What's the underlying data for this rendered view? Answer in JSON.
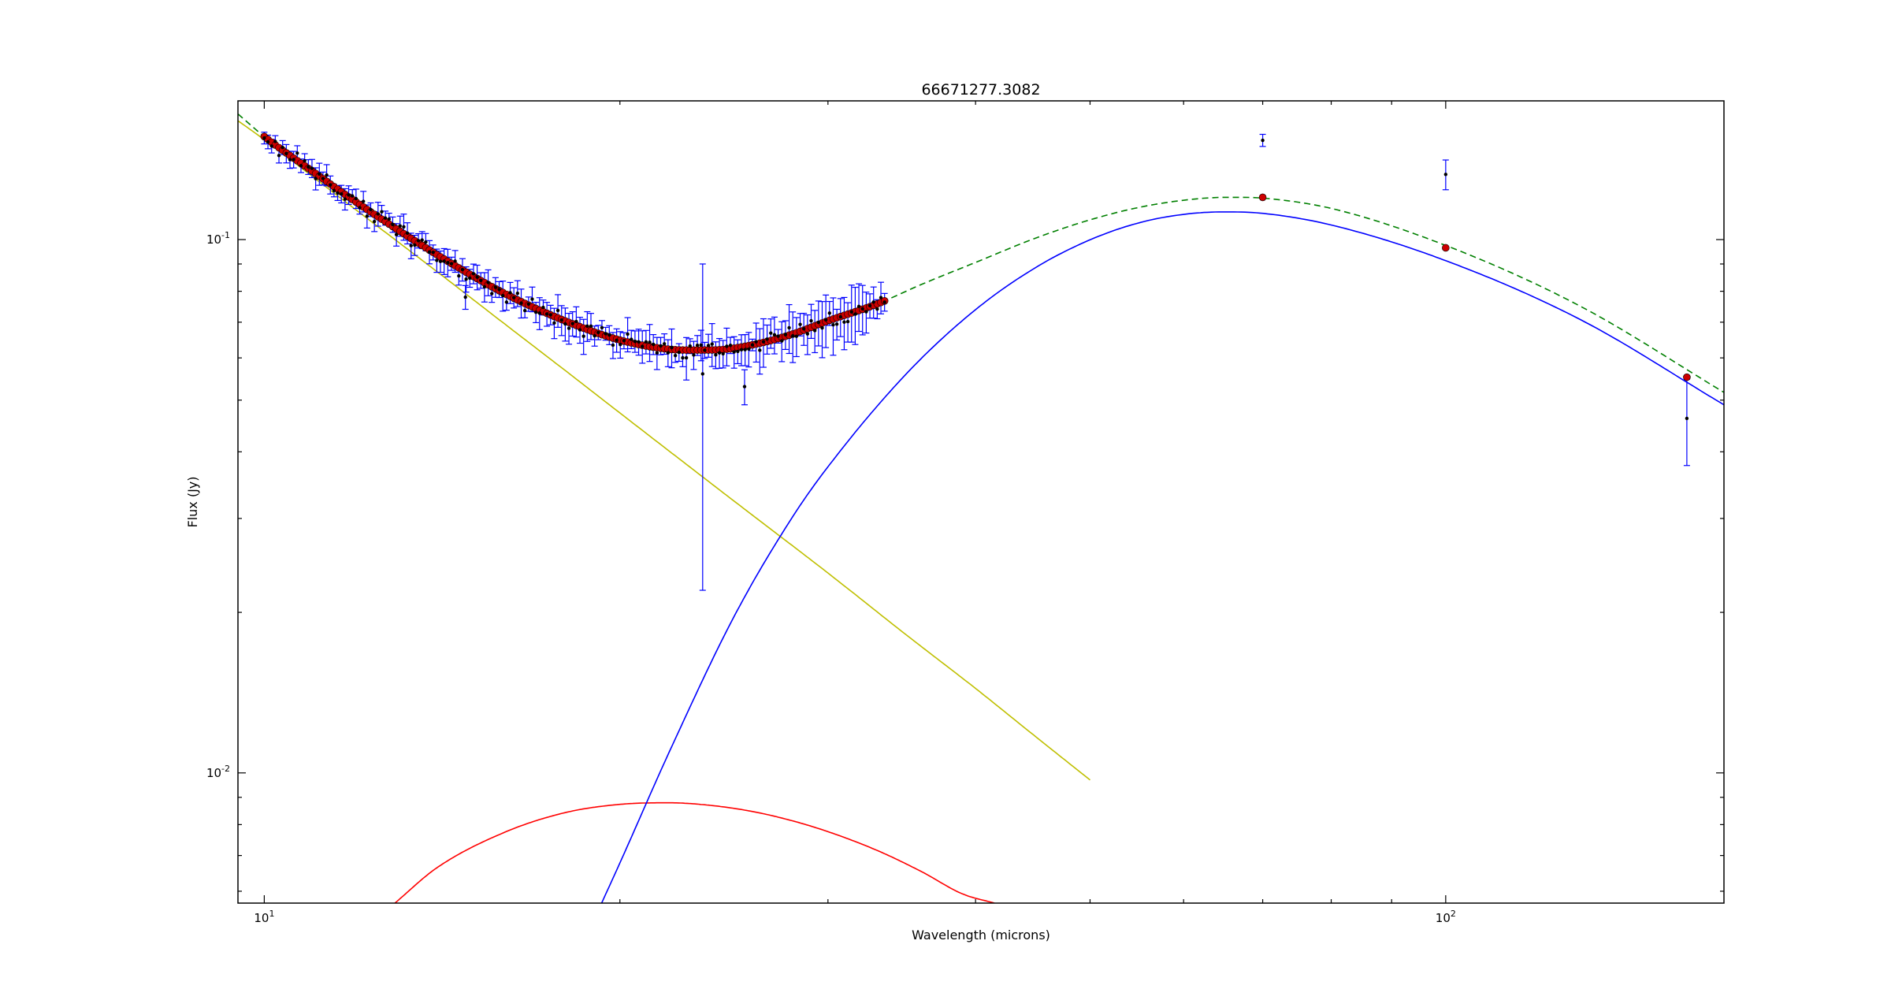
{
  "chart_data": {
    "type": "scatter",
    "title": "66671277.3082",
    "xlabel": "Wavelength (microns)",
    "ylabel": "Flux (Jy)",
    "xscale": "log",
    "yscale": "log",
    "xlim": [
      9.5,
      172
    ],
    "ylim": [
      0.0057,
      0.182
    ],
    "grid": false,
    "legend": "none",
    "x_ticks": [
      {
        "value": 10,
        "base": "10",
        "exp": "1"
      },
      {
        "value": 100,
        "base": "10",
        "exp": "2"
      }
    ],
    "y_ticks": [
      {
        "value": 0.01,
        "base": "10",
        "exp": "-2"
      },
      {
        "value": 0.1,
        "base": "10",
        "exp": "-1"
      }
    ],
    "series": [
      {
        "kind": "model-curve",
        "color": "#bfbf00",
        "style": "solid",
        "x": [
          9.5,
          10,
          11,
          12,
          14,
          16,
          18,
          20,
          25,
          30,
          35,
          40,
          45,
          50
        ],
        "y": [
          0.167,
          0.154,
          0.131,
          0.113,
          0.0871,
          0.0693,
          0.0567,
          0.0473,
          0.0323,
          0.0237,
          0.0181,
          0.0144,
          0.01168,
          0.0097
        ]
      },
      {
        "kind": "model-curve",
        "color": "#ff0000",
        "style": "solid",
        "x": [
          12.9,
          14,
          16,
          18,
          20,
          22,
          24,
          26,
          28,
          30,
          33,
          36,
          39,
          41.5
        ],
        "y": [
          0.0057,
          0.00664,
          0.00775,
          0.00843,
          0.00873,
          0.00879,
          0.00868,
          0.00845,
          0.00813,
          0.00776,
          0.00716,
          0.00653,
          0.00593,
          0.0057
        ]
      },
      {
        "kind": "model-curve",
        "color": "#0000ff",
        "style": "solid",
        "x": [
          19.3,
          20,
          22,
          25,
          28,
          30,
          35,
          40,
          45,
          50,
          55,
          60,
          65,
          70,
          80,
          100,
          130,
          172
        ],
        "y": [
          0.0057,
          0.00678,
          0.0109,
          0.0197,
          0.0302,
          0.0375,
          0.0562,
          0.0739,
          0.0887,
          0.0999,
          0.1075,
          0.1115,
          0.1127,
          0.112,
          0.1065,
          0.0913,
          0.0708,
          0.049
        ]
      },
      {
        "kind": "model-curve",
        "color": "#008000",
        "style": "dashed",
        "x": [
          9.5,
          10,
          11,
          12,
          14,
          16,
          18,
          20,
          22,
          24,
          26,
          28,
          30,
          33,
          36,
          40,
          45,
          50,
          55,
          60,
          65,
          70,
          80,
          100,
          130,
          172
        ],
        "y": [
          0.172,
          0.156,
          0.134,
          0.117,
          0.0937,
          0.0791,
          0.0703,
          0.0648,
          0.0623,
          0.0621,
          0.0636,
          0.0665,
          0.0704,
          0.0757,
          0.0824,
          0.0906,
          0.1007,
          0.1089,
          0.1149,
          0.1185,
          0.12,
          0.1196,
          0.1144,
          0.0975,
          0.075,
          0.0517
        ]
      },
      {
        "kind": "model-points",
        "color": "#cc0000",
        "x_range": [
          10,
          33.5
        ],
        "count": 170,
        "photometry": {
          "x": [
            70,
            100,
            160
          ],
          "y": [
            0.12,
            0.0965,
            0.0552
          ]
        }
      },
      {
        "kind": "observed-points",
        "color": "#000000",
        "errorbar_color": "#0000ff",
        "spectrum": {
          "x_range": [
            10,
            33.5
          ],
          "count": 170,
          "scatter": 0.035,
          "relative_error": 0.05
        },
        "outliers": [
          {
            "x": 14.8,
            "y": 0.078,
            "err": 0.004
          },
          {
            "x": 23.5,
            "y": 0.056,
            "err": 0.034
          },
          {
            "x": 25.5,
            "y": 0.053,
            "err": 0.004
          }
        ],
        "photometry": {
          "x": [
            70,
            100,
            160
          ],
          "y": [
            0.1535,
            0.1325,
            0.0462
          ],
          "err": [
            0.004,
            0.0085,
            0.0085
          ]
        }
      }
    ]
  }
}
